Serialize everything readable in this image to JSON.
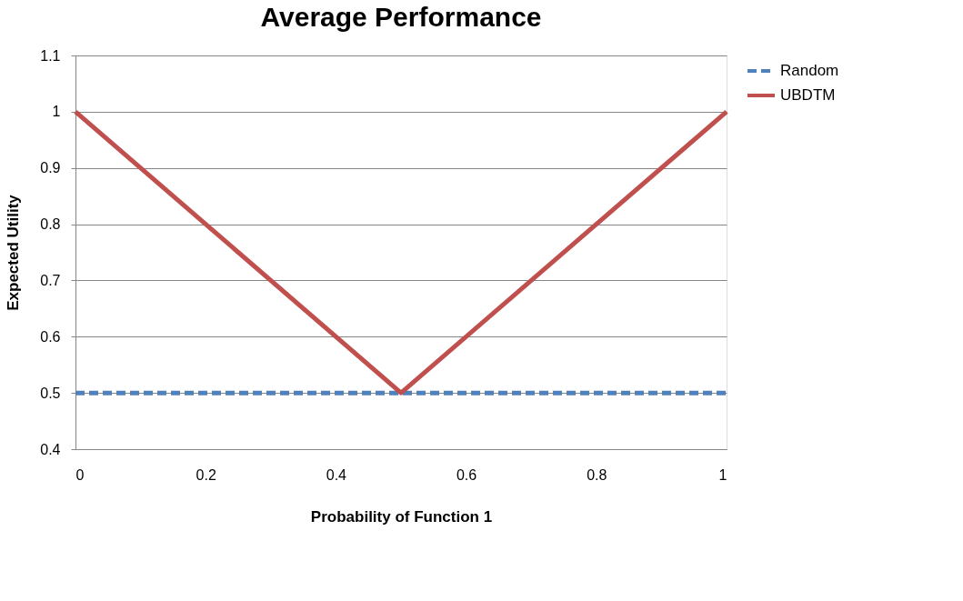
{
  "chart_data": {
    "type": "line",
    "title": "Average Performance",
    "xlabel": "Probability of Function 1",
    "ylabel": "Expected Utility",
    "xlim": [
      0,
      1
    ],
    "xticks": [
      0,
      0.2,
      0.4,
      0.6,
      0.8,
      1
    ],
    "ylim": [
      0.4,
      1.1
    ],
    "yticks": [
      0.4,
      0.5,
      0.6,
      0.7,
      0.8,
      0.9,
      1,
      1.1
    ],
    "grid": "y",
    "legend": "right",
    "marker": "none",
    "series": [
      {
        "name": "Random",
        "color": "#4f81bd",
        "line_style": "dashed",
        "x": [
          0,
          0.5,
          1
        ],
        "values": [
          0.5,
          0.5,
          0.5
        ]
      },
      {
        "name": "UBDTM",
        "color": "#c0504d",
        "line_style": "solid",
        "x": [
          0,
          0.5,
          1
        ],
        "values": [
          1,
          0.5,
          1
        ]
      }
    ]
  }
}
